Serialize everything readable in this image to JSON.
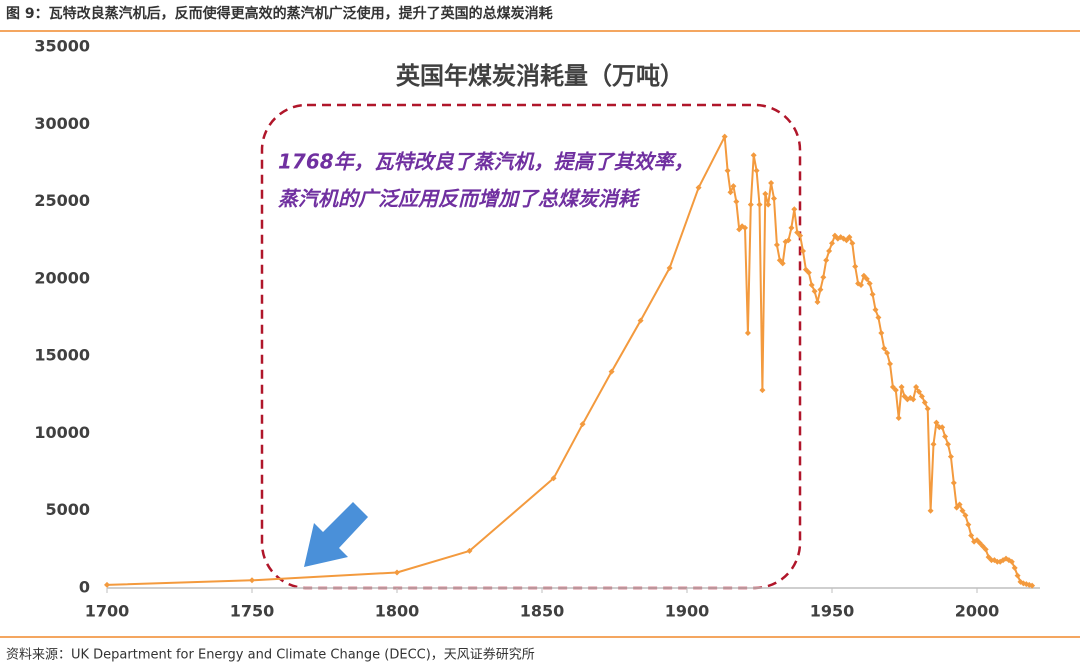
{
  "header": "图 9：瓦特改良蒸汽机后，反而使得更高效的蒸汽机广泛使用，提升了英国的总煤炭消耗",
  "source": "资料来源：UK  Department for Energy and Climate Change (DECC)，天风证券研究所",
  "chart_data": {
    "type": "line",
    "title": "英国年煤炭消耗量（万吨）",
    "annotations": [
      "1768年，瓦特改良了蒸汽机，提高了其效率，",
      "蒸汽机的广泛应用反而增加了总煤炭消耗"
    ],
    "color": "#f39a3e",
    "x": [
      1700,
      1750,
      1800,
      1825,
      1854,
      1864,
      1874,
      1884,
      1894,
      1904,
      1913,
      1914,
      1915,
      1916,
      1917,
      1918,
      1919,
      1920,
      1921,
      1922,
      1923,
      1924,
      1925,
      1926,
      1927,
      1928,
      1929,
      1930,
      1931,
      1932,
      1933,
      1934,
      1935,
      1936,
      1937,
      1938,
      1939,
      1940,
      1941,
      1942,
      1943,
      1944,
      1945,
      1946,
      1947,
      1948,
      1949,
      1950,
      1951,
      1952,
      1953,
      1954,
      1955,
      1956,
      1957,
      1958,
      1959,
      1960,
      1961,
      1962,
      1963,
      1964,
      1965,
      1966,
      1967,
      1968,
      1969,
      1970,
      1971,
      1972,
      1973,
      1974,
      1975,
      1976,
      1977,
      1978,
      1979,
      1980,
      1981,
      1982,
      1983,
      1984,
      1985,
      1986,
      1987,
      1988,
      1989,
      1990,
      1991,
      1992,
      1993,
      1994,
      1995,
      1996,
      1997,
      1998,
      1999,
      2000,
      2001,
      2002,
      2003,
      2004,
      2005,
      2006,
      2007,
      2008,
      2009,
      2010,
      2011,
      2012,
      2013,
      2014,
      2015,
      2016,
      2017,
      2018,
      2019
    ],
    "values": [
      200,
      500,
      1000,
      2400,
      7100,
      10600,
      14000,
      17300,
      20700,
      25900,
      29200,
      27000,
      25600,
      26000,
      25000,
      23200,
      23400,
      23300,
      16500,
      24800,
      28000,
      27000,
      24800,
      12800,
      25500,
      24800,
      26200,
      25200,
      22200,
      21200,
      21000,
      22400,
      22500,
      23300,
      24500,
      23000,
      22800,
      21800,
      20600,
      20400,
      19600,
      19200,
      18500,
      19300,
      20100,
      21200,
      21800,
      22300,
      22800,
      22600,
      22700,
      22600,
      22500,
      22700,
      22300,
      20800,
      19700,
      19600,
      20200,
      20000,
      19700,
      19000,
      18000,
      17500,
      16500,
      15500,
      15200,
      14500,
      13000,
      12800,
      11000,
      13000,
      12400,
      12200,
      12300,
      12200,
      13000,
      12700,
      12400,
      12000,
      11600,
      5000,
      9300,
      10700,
      10400,
      10400,
      9800,
      9300,
      8500,
      6800,
      5200,
      5400,
      5000,
      4700,
      4100,
      3400,
      3000,
      3100,
      2900,
      2700,
      2500,
      2000,
      1800,
      1800,
      1700,
      1700,
      1800,
      1900,
      1800,
      1700,
      1300,
      800,
      400,
      300,
      250,
      200,
      150
    ],
    "xlim": [
      1700,
      2020
    ],
    "xticks": [
      1700,
      1750,
      1800,
      1850,
      1900,
      1950,
      2000
    ],
    "ylim": [
      0,
      35000
    ],
    "yticks": [
      0,
      5000,
      10000,
      15000,
      20000,
      25000,
      30000,
      35000
    ],
    "grid": false
  }
}
